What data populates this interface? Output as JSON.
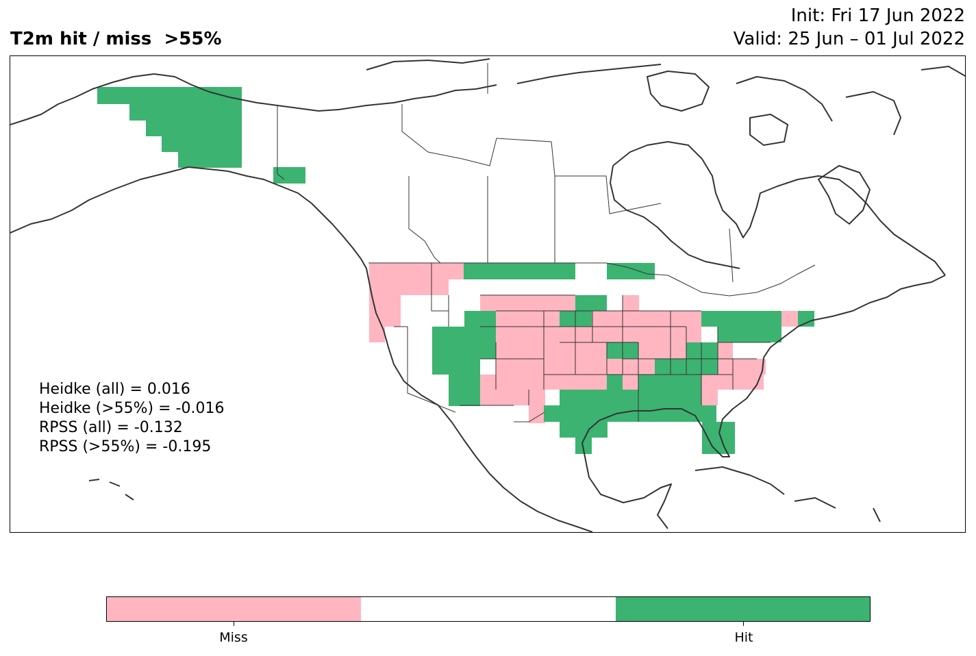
{
  "header": {
    "title": "T2m hit / miss  >55%",
    "init": "Init: Fri 17 Jun 2022",
    "valid": "Valid: 25 Jun – 01 Jul 2022"
  },
  "stats": [
    "Heidke (all) = 0.016",
    "Heidke (>55%) = -0.016",
    "RPSS (all) = -0.132",
    "RPSS (>55%) = -0.195"
  ],
  "legend": {
    "categories": [
      "Miss",
      "",
      "Hit"
    ],
    "colors": {
      "miss": "#ffb6c1",
      "neutral": "#ffffff",
      "hit": "#3cb371"
    },
    "tick_labels": [
      "Miss",
      "Hit"
    ]
  },
  "map": {
    "region": "North America",
    "projection": "PlateCarree",
    "outline_color": "#333333"
  }
}
